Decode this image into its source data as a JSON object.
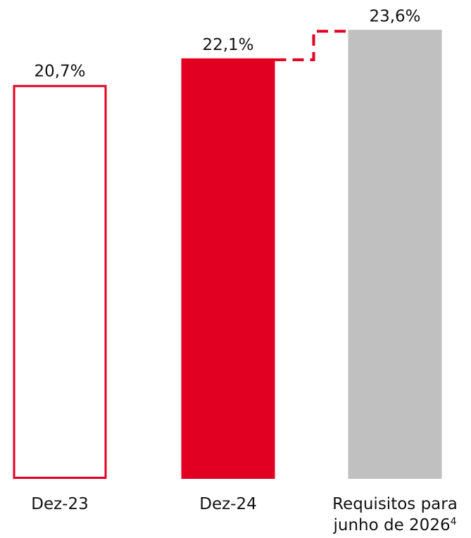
{
  "chart_data": {
    "type": "bar",
    "categories": [
      "Dez-23",
      "Dez-24",
      "Requisitos para junho de 2026"
    ],
    "category_lines": [
      [
        "Dez-23"
      ],
      [
        "Dez-24"
      ],
      [
        "Requisitos para",
        "junho de 2026"
      ]
    ],
    "category_superscripts": [
      "",
      "",
      "4"
    ],
    "values": [
      20.7,
      22.1,
      23.6
    ],
    "value_labels": [
      "20,7%",
      "22,1%",
      "23,6%"
    ],
    "bar_styles": [
      "outline",
      "filled",
      "filled"
    ],
    "bar_colors": [
      "#e10022",
      "#e10022",
      "#c0c0c0"
    ],
    "connector": {
      "style": "dashed",
      "color": "#e10022",
      "from_category": "Dez-24",
      "to_category": "Requisitos para junho de 2026"
    },
    "title": "",
    "xlabel": "",
    "ylabel": "",
    "ylim": [
      0,
      24.5
    ],
    "grid": false,
    "legend": "none"
  }
}
